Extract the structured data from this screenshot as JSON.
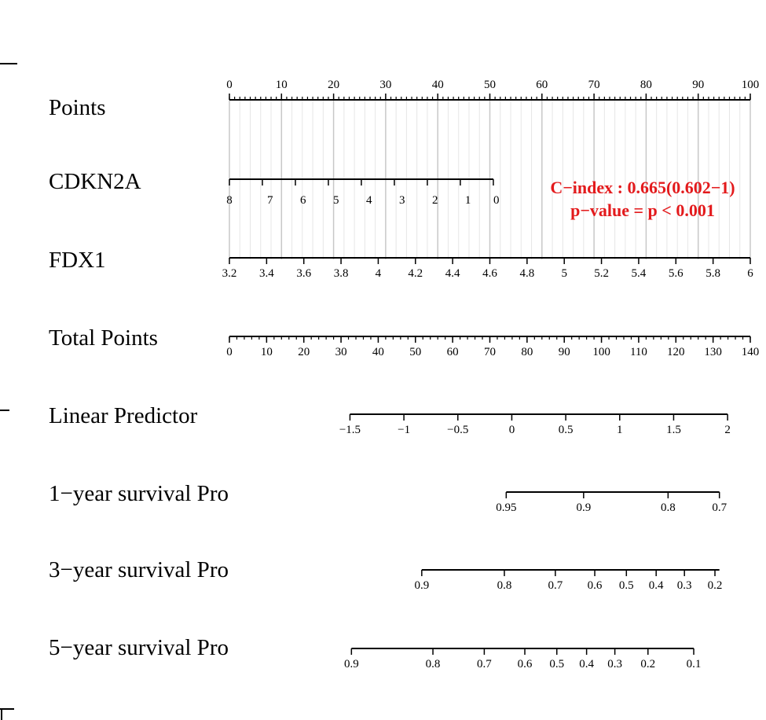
{
  "chart_data": {
    "type": "nomogram",
    "annotations": [
      "C−index : 0.665(0.602−1)",
      "p−value = p < 0.001"
    ],
    "annotation_color": "#e31a1c",
    "rows": [
      {
        "label": "Points",
        "ticks": [
          "0",
          "10",
          "20",
          "30",
          "40",
          "50",
          "60",
          "70",
          "80",
          "90",
          "100"
        ],
        "values": [
          0,
          10,
          20,
          30,
          40,
          50,
          60,
          70,
          80,
          90,
          100
        ],
        "minor_count": 10,
        "label_side": "above"
      },
      {
        "label": "CDKN2A",
        "ticks": [
          "8",
          "7",
          "6",
          "5",
          "4",
          "3",
          "2",
          "1",
          "0"
        ],
        "values": [
          8,
          7,
          6,
          5,
          4,
          3,
          2,
          1,
          0
        ],
        "points": [
          0,
          6.33,
          12.67,
          19,
          25.33,
          31.67,
          38,
          44.33,
          50.67
        ],
        "label_side": "below-right"
      },
      {
        "label": "FDX1",
        "ticks": [
          "3.2",
          "3.4",
          "3.6",
          "3.8",
          "4",
          "4.2",
          "4.4",
          "4.6",
          "4.8",
          "5",
          "5.2",
          "5.4",
          "5.6",
          "5.8",
          "6"
        ],
        "values": [
          3.2,
          3.4,
          3.6,
          3.8,
          4,
          4.2,
          4.4,
          4.6,
          4.8,
          5,
          5.2,
          5.4,
          5.6,
          5.8,
          6
        ],
        "label_side": "below"
      },
      {
        "label": "Total Points",
        "ticks": [
          "0",
          "10",
          "20",
          "30",
          "40",
          "50",
          "60",
          "70",
          "80",
          "90",
          "100",
          "110",
          "120",
          "130",
          "140"
        ],
        "values": [
          0,
          10,
          20,
          30,
          40,
          50,
          60,
          70,
          80,
          90,
          100,
          110,
          120,
          130,
          140
        ],
        "minor_count": 5,
        "label_side": "below"
      },
      {
        "label": "Linear Predictor",
        "ticks": [
          "−1.5",
          "−1",
          "−0.5",
          "0",
          "0.5",
          "1",
          "1.5",
          "2"
        ],
        "values": [
          -1.5,
          -1,
          -0.5,
          0,
          0.5,
          1,
          1.5,
          2
        ],
        "total_points": [
          32.4,
          46.9,
          61.4,
          75.9,
          90.4,
          104.9,
          119.4,
          133.9
        ],
        "label_side": "below"
      },
      {
        "label": "1−year survival Pro",
        "ticks": [
          "0.95",
          "0.9",
          "0.8",
          "0.7"
        ],
        "values": [
          0.95,
          0.9,
          0.8,
          0.7
        ],
        "total_points": [
          74.4,
          95.2,
          117.9,
          131.7
        ],
        "line_total_points": [
          74.4,
          131.7
        ],
        "label_side": "below"
      },
      {
        "label": "3−year survival Pro",
        "ticks": [
          "0.9",
          "0.8",
          "0.7",
          "0.6",
          "0.5",
          "0.4",
          "0.3",
          "0.2"
        ],
        "values": [
          0.9,
          0.8,
          0.7,
          0.6,
          0.5,
          0.4,
          0.3,
          0.2
        ],
        "total_points": [
          51.7,
          73.9,
          87.6,
          98.2,
          106.7,
          114.7,
          122.3,
          130.5
        ],
        "line_total_points": [
          51.7,
          131.7
        ],
        "label_side": "below"
      },
      {
        "label": "5−year survival Pro",
        "ticks": [
          "0.9",
          "0.8",
          "0.7",
          "0.6",
          "0.5",
          "0.4",
          "0.3",
          "0.2",
          "0.1"
        ],
        "values": [
          0.9,
          0.8,
          0.7,
          0.6,
          0.5,
          0.4,
          0.3,
          0.2,
          0.1
        ],
        "total_points": [
          32.8,
          54.7,
          68.5,
          79.4,
          88.0,
          96.0,
          103.6,
          112.5,
          124.8
        ],
        "line_total_points": [
          32.8,
          124.8
        ],
        "label_side": "below"
      }
    ]
  }
}
